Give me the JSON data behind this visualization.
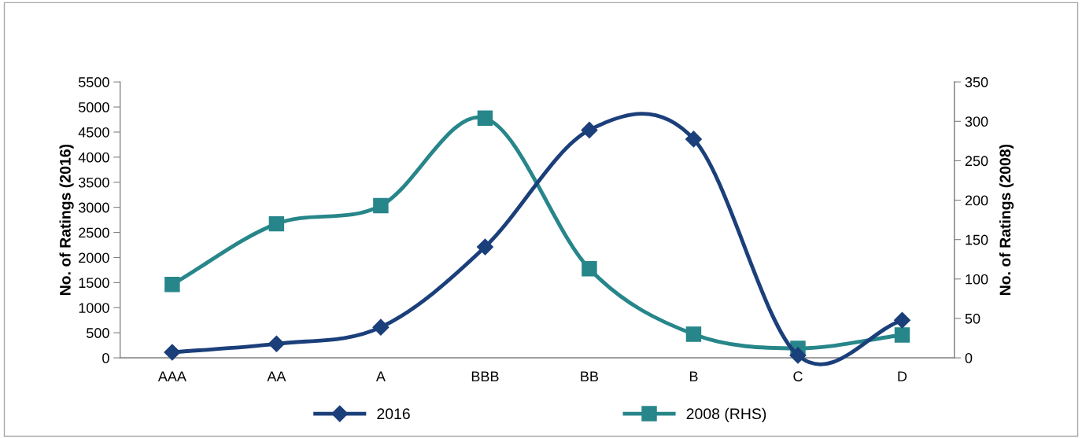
{
  "chart_data": {
    "type": "line",
    "ylabel": "No. of Ratings (2016)",
    "y2label": "No. of Ratings (2008)",
    "categories": [
      "AAA",
      "AA",
      "A",
      "BBB",
      "BB",
      "B",
      "C",
      "D"
    ],
    "series": [
      {
        "name": "2016",
        "color": "#1b3f7a",
        "marker": "diamond",
        "values": [
          110,
          280,
          610,
          2210,
          4540,
          4360,
          50,
          750
        ]
      },
      {
        "name": "2008 (RHS)",
        "color": "#27868a",
        "marker": "square",
        "axis": "y2",
        "values": [
          93,
          170,
          193,
          304,
          113,
          30,
          12,
          29
        ]
      }
    ],
    "ylim": [
      0,
      5500
    ],
    "yticks": [
      0,
      500,
      1000,
      1500,
      2000,
      2500,
      3000,
      3500,
      4000,
      4500,
      5000,
      5500
    ],
    "y2lim": [
      0,
      350
    ],
    "y2ticks": [
      0,
      50,
      100,
      150,
      200,
      250,
      300,
      350
    ],
    "grid": false,
    "legend": "bottom",
    "line_style": "solid"
  }
}
